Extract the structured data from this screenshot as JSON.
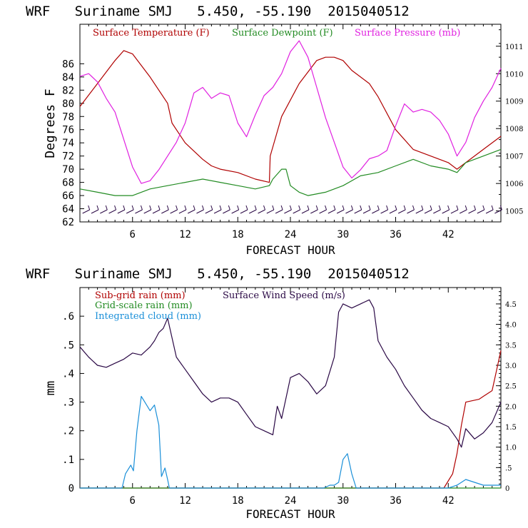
{
  "colors": {
    "temperature": "#b00000",
    "dewpoint": "#228b22",
    "pressure": "#e020e0",
    "subgrid_rain": "#b00000",
    "gridscale_rain": "#228b22",
    "cloud": "#1a8fd8",
    "wind": "#2a0845",
    "wind_barbs": "#2a0845"
  },
  "chart_data": [
    {
      "type": "line",
      "title": "WRF   Suriname SMJ   5.450, -55.190  2015040512",
      "xlabel": "FORECAST HOUR",
      "ylabel": "Degrees F",
      "xlim": [
        0,
        48
      ],
      "ylim": [
        62,
        92
      ],
      "y2lim": [
        1004.6,
        1011.8
      ],
      "x_ticks": [
        6,
        12,
        18,
        24,
        30,
        36,
        42
      ],
      "y_ticks": [
        62,
        64,
        66,
        68,
        70,
        72,
        74,
        76,
        78,
        80,
        82,
        84,
        86
      ],
      "y2_ticks": [
        1005,
        1006,
        1007,
        1008,
        1009,
        1010,
        1011
      ],
      "legend": [
        "Surface Temperature (F)",
        "Surface Dewpoint (F)",
        "Surface Pressure (mb)"
      ],
      "series": [
        {
          "name": "Surface Temperature (F)",
          "axis": "left",
          "x": [
            0,
            2,
            4,
            5,
            6,
            8,
            10,
            10.5,
            12,
            14,
            15,
            16,
            18,
            20,
            21.6,
            21.7,
            23,
            25,
            27,
            28,
            29,
            30,
            31,
            33,
            34,
            36,
            38,
            40,
            42,
            43,
            44,
            46,
            48
          ],
          "values": [
            79.5,
            83,
            86.5,
            88,
            87.5,
            84,
            80,
            77,
            74,
            71.5,
            70.5,
            70,
            69.5,
            68.5,
            68,
            72,
            78,
            83,
            86.5,
            87,
            87,
            86.5,
            85,
            83,
            81,
            76,
            73,
            72,
            71,
            70,
            71,
            73,
            75
          ]
        },
        {
          "name": "Surface Dewpoint (F)",
          "axis": "left",
          "x": [
            0,
            2,
            4,
            6,
            8,
            10,
            12,
            14,
            16,
            18,
            20,
            21.6,
            22,
            23,
            23.5,
            24,
            25,
            26,
            28,
            30,
            32,
            34,
            36,
            38,
            40,
            42,
            43,
            44,
            46,
            48
          ],
          "values": [
            67,
            66.5,
            66,
            66,
            67,
            67.5,
            68,
            68.5,
            68,
            67.5,
            67,
            67.5,
            68.5,
            70,
            70,
            67.5,
            66.5,
            66,
            66.5,
            67.5,
            69,
            69.5,
            70.5,
            71.5,
            70.5,
            70,
            69.5,
            71,
            72,
            73
          ]
        },
        {
          "name": "Surface Pressure (mb)",
          "axis": "right",
          "x": [
            0,
            1,
            2,
            3,
            4,
            5,
            6,
            7,
            8,
            9,
            10,
            11,
            12,
            13,
            14,
            15,
            16,
            17,
            18,
            19,
            20,
            21,
            22,
            23,
            24,
            25,
            26,
            27,
            28,
            29,
            30,
            31,
            32,
            33,
            34,
            35,
            36,
            37,
            38,
            39,
            40,
            41,
            42,
            43,
            44,
            45,
            46,
            47,
            48
          ],
          "values": [
            1009.9,
            1010,
            1009.7,
            1009.1,
            1008.6,
            1007.6,
            1006.6,
            1006,
            1006.1,
            1006.5,
            1007,
            1007.5,
            1008.2,
            1009.3,
            1009.5,
            1009.1,
            1009.3,
            1009.2,
            1008.2,
            1007.7,
            1008.5,
            1009.2,
            1009.5,
            1010,
            1010.8,
            1011.2,
            1010.6,
            1009.5,
            1008.4,
            1007.5,
            1006.6,
            1006.2,
            1006.5,
            1006.9,
            1007,
            1007.2,
            1008.1,
            1008.9,
            1008.6,
            1008.7,
            1008.6,
            1008.3,
            1007.8,
            1007,
            1007.5,
            1008.4,
            1009,
            1009.5,
            1010.2
          ]
        }
      ]
    },
    {
      "type": "line",
      "title": "WRF   Suriname SMJ   5.450, -55.190  2015040512",
      "xlabel": "FORECAST HOUR",
      "ylabel": "mm",
      "xlim": [
        0,
        48
      ],
      "ylim": [
        0,
        0.7
      ],
      "y2lim": [
        0,
        4.9
      ],
      "x_ticks": [
        6,
        12,
        18,
        24,
        30,
        36,
        42
      ],
      "y_ticks": [
        0,
        0.1,
        0.2,
        0.3,
        0.4,
        0.5,
        0.6
      ],
      "y_tick_labels": [
        "0",
        ".1",
        ".2",
        ".3",
        ".4",
        ".5",
        ".6"
      ],
      "y2_ticks": [
        0,
        0.5,
        1.0,
        1.5,
        2.0,
        2.5,
        3.0,
        3.5,
        4.0,
        4.5
      ],
      "y2_tick_labels": [
        "0",
        ".5",
        "1.0",
        "1.5",
        "2.0",
        "2.5",
        "3.0",
        "3.5",
        "4.0",
        "4.5"
      ],
      "legend": [
        "Sub-grid rain (mm)",
        "Grid-scale rain (mm)",
        "Integrated cloud (mm)",
        "Surface Wind Speed (m/s)"
      ],
      "series": [
        {
          "name": "Sub-grid rain (mm)",
          "axis": "left",
          "x": [
            0,
            41.5,
            42.5,
            43,
            43.5,
            44,
            45.5,
            46,
            47,
            48
          ],
          "values": [
            0,
            0,
            0.05,
            0.12,
            0.22,
            0.3,
            0.31,
            0.32,
            0.34,
            0.48
          ]
        },
        {
          "name": "Grid-scale rain (mm)",
          "axis": "left",
          "x": [
            0,
            48
          ],
          "values": [
            0,
            0
          ]
        },
        {
          "name": "Integrated cloud (mm)",
          "axis": "left",
          "x": [
            0,
            4.8,
            5.2,
            5.8,
            6.1,
            6.5,
            7,
            7.4,
            8,
            8.5,
            9,
            9.3,
            9.7,
            10,
            10.2,
            27.8,
            28.5,
            29,
            29.5,
            30,
            30.5,
            31,
            31.5,
            42,
            43,
            44,
            45,
            46,
            47,
            48
          ],
          "values": [
            0,
            0,
            0.05,
            0.08,
            0.06,
            0.2,
            0.32,
            0.3,
            0.27,
            0.29,
            0.22,
            0.04,
            0.07,
            0.03,
            0,
            0,
            0.01,
            0.01,
            0.02,
            0.1,
            0.12,
            0.05,
            0,
            0,
            0.01,
            0.03,
            0.02,
            0.01,
            0.01,
            0.01
          ]
        },
        {
          "name": "Surface Wind Speed (m/s)",
          "axis": "right",
          "x": [
            0,
            1,
            2,
            3,
            4,
            5,
            6,
            7,
            8,
            8.5,
            9,
            9.5,
            10,
            11,
            12,
            13,
            14,
            15,
            16,
            17,
            18,
            19,
            20,
            21,
            22,
            22.5,
            23,
            24,
            25,
            26,
            27,
            28,
            29,
            29.5,
            30,
            31,
            32,
            33,
            33.5,
            34,
            35,
            36,
            37,
            38,
            39,
            40,
            41,
            42,
            43,
            43.5,
            44,
            45,
            46,
            47,
            48
          ],
          "values": [
            3.45,
            3.2,
            3.0,
            2.95,
            3.05,
            3.15,
            3.3,
            3.25,
            3.45,
            3.6,
            3.8,
            3.9,
            4.15,
            3.2,
            2.9,
            2.6,
            2.3,
            2.1,
            2.2,
            2.2,
            2.1,
            1.8,
            1.5,
            1.4,
            1.3,
            2.0,
            1.7,
            2.7,
            2.8,
            2.6,
            2.3,
            2.5,
            3.2,
            4.3,
            4.5,
            4.4,
            4.5,
            4.6,
            4.4,
            3.6,
            3.2,
            2.9,
            2.5,
            2.2,
            1.9,
            1.7,
            1.6,
            1.5,
            1.2,
            1.0,
            1.45,
            1.2,
            1.35,
            1.6,
            2.1
          ]
        }
      ]
    }
  ]
}
